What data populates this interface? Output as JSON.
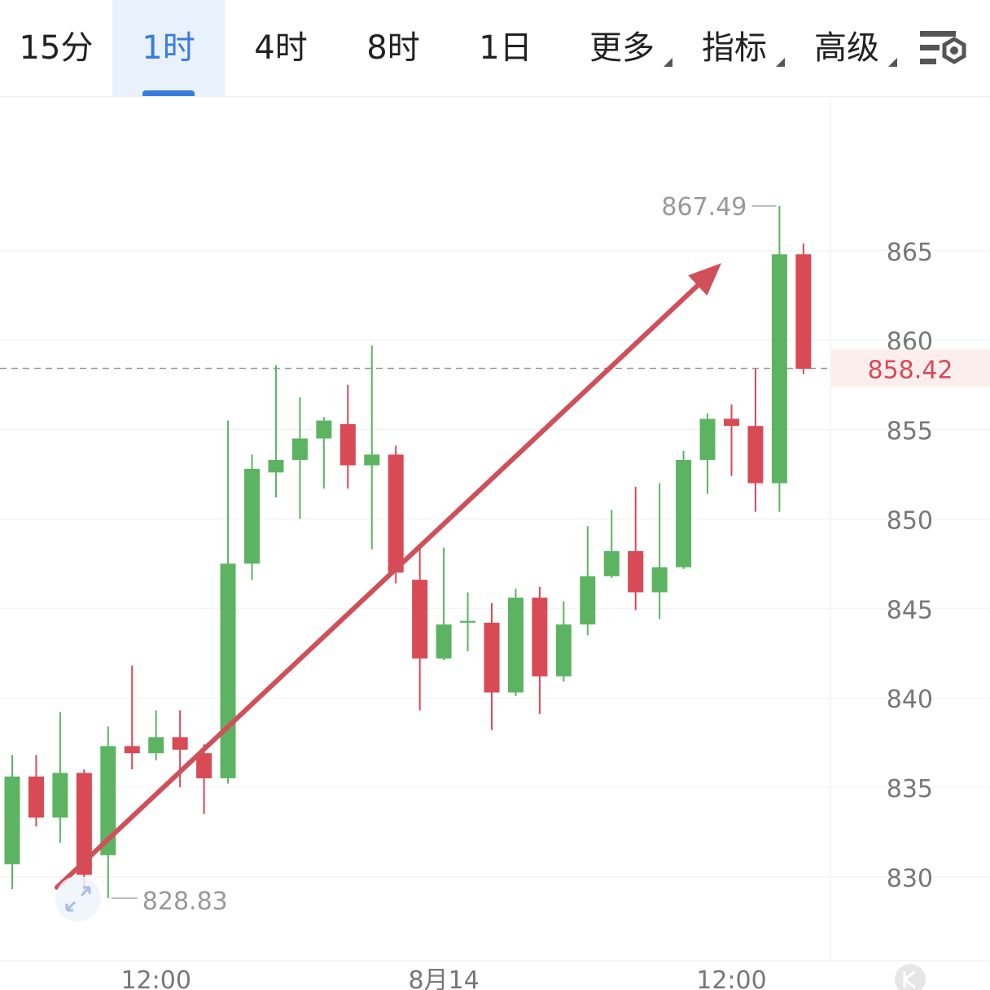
{
  "toolbar": {
    "tabs": [
      {
        "label": "15分",
        "active": false,
        "dropdown": false
      },
      {
        "label": "1时",
        "active": true,
        "dropdown": false
      },
      {
        "label": "4时",
        "active": false,
        "dropdown": false
      },
      {
        "label": "8时",
        "active": false,
        "dropdown": false
      },
      {
        "label": "1日",
        "active": false,
        "dropdown": false
      },
      {
        "label": "更多",
        "active": false,
        "dropdown": true
      },
      {
        "label": "指标",
        "active": false,
        "dropdown": true
      },
      {
        "label": "高级",
        "active": false,
        "dropdown": true
      }
    ],
    "settings_icon": "chart-settings-gear-icon",
    "active_color": "#3a7be0"
  },
  "chart_data": {
    "type": "candlestick",
    "title": "",
    "xlabel": "",
    "ylabel": "",
    "ylim": [
      825.3,
      873.6
    ],
    "y_ticks": [
      830,
      835,
      840,
      845,
      850,
      855,
      860,
      865
    ],
    "x_ticks": [
      {
        "index": 6,
        "label": "12:00"
      },
      {
        "index": 18,
        "label": "8月14"
      },
      {
        "index": 30,
        "label": "12:00"
      }
    ],
    "grid": true,
    "up_color": "#5cb462",
    "down_color": "#d84a55",
    "last_price": 858.42,
    "last_price_label": "858.42",
    "max_label": "867.49",
    "min_label": "828.83",
    "max_index": 32,
    "min_index": 4,
    "candles": [
      {
        "o": 830.7,
        "h": 836.8,
        "l": 829.3,
        "c": 835.6
      },
      {
        "o": 835.6,
        "h": 836.8,
        "l": 832.8,
        "c": 833.3
      },
      {
        "o": 833.3,
        "h": 839.2,
        "l": 831.9,
        "c": 835.8
      },
      {
        "o": 835.8,
        "h": 836.0,
        "l": 829.1,
        "c": 830.1
      },
      {
        "o": 831.2,
        "h": 838.4,
        "l": 828.8,
        "c": 837.3
      },
      {
        "o": 837.3,
        "h": 841.8,
        "l": 836.0,
        "c": 836.9
      },
      {
        "o": 836.9,
        "h": 839.3,
        "l": 836.5,
        "c": 837.8
      },
      {
        "o": 837.8,
        "h": 839.3,
        "l": 835.0,
        "c": 837.1
      },
      {
        "o": 836.9,
        "h": 837.4,
        "l": 833.5,
        "c": 835.5
      },
      {
        "o": 835.5,
        "h": 855.5,
        "l": 835.2,
        "c": 847.5
      },
      {
        "o": 847.5,
        "h": 853.6,
        "l": 846.6,
        "c": 852.8
      },
      {
        "o": 852.6,
        "h": 858.6,
        "l": 851.2,
        "c": 853.3
      },
      {
        "o": 853.3,
        "h": 856.8,
        "l": 850.0,
        "c": 854.5
      },
      {
        "o": 854.5,
        "h": 855.7,
        "l": 851.7,
        "c": 855.5
      },
      {
        "o": 855.3,
        "h": 857.5,
        "l": 851.7,
        "c": 853.0
      },
      {
        "o": 853.0,
        "h": 859.7,
        "l": 848.3,
        "c": 853.6
      },
      {
        "o": 853.6,
        "h": 854.1,
        "l": 846.4,
        "c": 847.0
      },
      {
        "o": 846.6,
        "h": 848.5,
        "l": 839.3,
        "c": 842.2
      },
      {
        "o": 842.2,
        "h": 848.4,
        "l": 842.1,
        "c": 844.1
      },
      {
        "o": 844.2,
        "h": 845.9,
        "l": 842.6,
        "c": 844.3
      },
      {
        "o": 844.2,
        "h": 845.3,
        "l": 838.2,
        "c": 840.3
      },
      {
        "o": 840.3,
        "h": 846.1,
        "l": 840.1,
        "c": 845.6
      },
      {
        "o": 845.6,
        "h": 846.2,
        "l": 839.1,
        "c": 841.2
      },
      {
        "o": 841.2,
        "h": 845.4,
        "l": 840.9,
        "c": 844.1
      },
      {
        "o": 844.1,
        "h": 849.6,
        "l": 843.5,
        "c": 846.8
      },
      {
        "o": 846.8,
        "h": 850.5,
        "l": 846.7,
        "c": 848.2
      },
      {
        "o": 848.2,
        "h": 851.8,
        "l": 844.9,
        "c": 845.9
      },
      {
        "o": 845.9,
        "h": 852.0,
        "l": 844.4,
        "c": 847.3
      },
      {
        "o": 847.3,
        "h": 853.8,
        "l": 847.2,
        "c": 853.3
      },
      {
        "o": 853.3,
        "h": 855.9,
        "l": 851.4,
        "c": 855.6
      },
      {
        "o": 855.6,
        "h": 856.4,
        "l": 852.4,
        "c": 855.2
      },
      {
        "o": 855.2,
        "h": 858.4,
        "l": 850.4,
        "c": 852.0
      },
      {
        "o": 852.0,
        "h": 867.5,
        "l": 850.4,
        "c": 864.8
      },
      {
        "o": 864.8,
        "h": 865.4,
        "l": 858.1,
        "c": 858.4
      }
    ],
    "annotation_arrow": {
      "from": {
        "index": 2,
        "value": 829.4
      },
      "to": {
        "index": 30,
        "value": 864.3
      },
      "color": "#d0505a"
    }
  }
}
